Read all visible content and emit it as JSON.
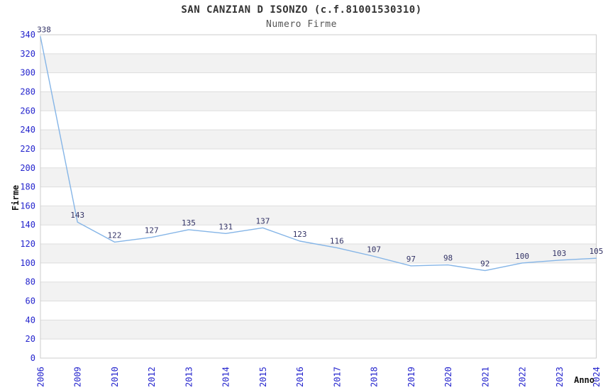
{
  "chart_data": {
    "type": "line",
    "title": "SAN CANZIAN D ISONZO (c.f.81001530310)",
    "subtitle": "Numero Firme",
    "xlabel": "Anno",
    "ylabel": "Firme",
    "categories": [
      "2006",
      "2009",
      "2010",
      "2012",
      "2013",
      "2014",
      "2015",
      "2016",
      "2017",
      "2018",
      "2019",
      "2020",
      "2021",
      "2022",
      "2023",
      "2024"
    ],
    "values": [
      338,
      143,
      122,
      127,
      135,
      131,
      137,
      123,
      116,
      107,
      97,
      98,
      92,
      100,
      103,
      105
    ],
    "ylim": [
      0,
      340
    ],
    "ytick_step": 20,
    "grid": "on",
    "bands": "alternating horizontal",
    "legend": "none",
    "colors": {
      "line": "#85b5e7",
      "tick_label": "#2424cd",
      "data_label": "#333366",
      "band": "#f2f2f2",
      "gridline": "#dddddd",
      "border": "#cccccc",
      "title": "#333333",
      "subtitle": "#555555",
      "axis_title": "#111111",
      "background": "#ffffff"
    }
  }
}
